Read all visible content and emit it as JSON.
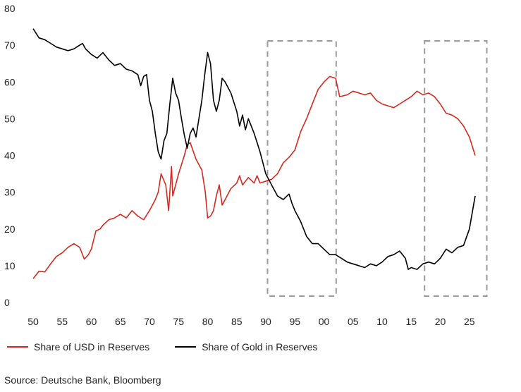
{
  "chart_data": {
    "type": "line",
    "title": "",
    "xlabel": "",
    "ylabel": "",
    "xlim": [
      1950,
      2030
    ],
    "ylim": [
      0,
      80
    ],
    "y_ticks": [
      0,
      10,
      20,
      30,
      40,
      50,
      60,
      70,
      80
    ],
    "x_ticks": [
      1950,
      1955,
      1960,
      1965,
      1970,
      1975,
      1980,
      1985,
      1990,
      1995,
      2000,
      2005,
      2010,
      2015,
      2020,
      2025
    ],
    "x_tick_labels": [
      "50",
      "55",
      "60",
      "65",
      "70",
      "75",
      "80",
      "85",
      "90",
      "95",
      "00",
      "05",
      "10",
      "15",
      "20",
      "25"
    ],
    "grid": false,
    "legend_position": "bottom-left",
    "highlight_periods": [
      [
        1990.3,
        2002.1
      ],
      [
        2017.3,
        2028.0
      ]
    ],
    "series": [
      {
        "name": "Share of USD in Reserves",
        "color": "#d42a20",
        "points": [
          [
            1950,
            6.5
          ],
          [
            1951,
            8.5
          ],
          [
            1952,
            8.3
          ],
          [
            1953,
            10.5
          ],
          [
            1954,
            12.5
          ],
          [
            1955,
            13.5
          ],
          [
            1956,
            15
          ],
          [
            1957,
            16
          ],
          [
            1958,
            15
          ],
          [
            1958.8,
            11.8
          ],
          [
            1959.5,
            13
          ],
          [
            1960,
            14.5
          ],
          [
            1960.8,
            19.5
          ],
          [
            1961.5,
            20
          ],
          [
            1962,
            21
          ],
          [
            1963,
            22.5
          ],
          [
            1964,
            23
          ],
          [
            1965,
            24
          ],
          [
            1966,
            23
          ],
          [
            1967,
            25
          ],
          [
            1968,
            23.5
          ],
          [
            1969,
            22.5
          ],
          [
            1970,
            25
          ],
          [
            1971,
            28
          ],
          [
            1971.5,
            30
          ],
          [
            1972,
            35
          ],
          [
            1972.8,
            32
          ],
          [
            1973.3,
            25
          ],
          [
            1973.8,
            37
          ],
          [
            1974,
            29
          ],
          [
            1975,
            35
          ],
          [
            1976,
            40
          ],
          [
            1976.5,
            43
          ],
          [
            1977,
            43.5
          ],
          [
            1978,
            39
          ],
          [
            1979,
            36
          ],
          [
            1979.6,
            30
          ],
          [
            1980,
            23
          ],
          [
            1980.5,
            23.5
          ],
          [
            1981,
            25
          ],
          [
            1981.5,
            29
          ],
          [
            1982,
            32
          ],
          [
            1982.5,
            26.5
          ],
          [
            1983,
            28
          ],
          [
            1984,
            31
          ],
          [
            1985,
            32.5
          ],
          [
            1985.5,
            34.5
          ],
          [
            1986,
            32
          ],
          [
            1987,
            34
          ],
          [
            1988,
            32.5
          ],
          [
            1988.5,
            34.5
          ],
          [
            1989,
            32.5
          ],
          [
            1990,
            33
          ],
          [
            1991,
            33.5
          ],
          [
            1992,
            35
          ],
          [
            1993,
            38
          ],
          [
            1994,
            39.5
          ],
          [
            1995,
            41.5
          ],
          [
            1996,
            46.5
          ],
          [
            1997,
            50
          ],
          [
            1998,
            54
          ],
          [
            1999,
            58
          ],
          [
            2000,
            60
          ],
          [
            2001,
            61.5
          ],
          [
            2002,
            61
          ],
          [
            2002.7,
            56
          ],
          [
            2004,
            56.5
          ],
          [
            2005,
            57.5
          ],
          [
            2006,
            57
          ],
          [
            2007,
            56.5
          ],
          [
            2008,
            57
          ],
          [
            2009,
            55
          ],
          [
            2010,
            54
          ],
          [
            2011,
            53.5
          ],
          [
            2012,
            53
          ],
          [
            2013,
            54
          ],
          [
            2014,
            55
          ],
          [
            2015,
            56
          ],
          [
            2016,
            57.5
          ],
          [
            2017,
            56.5
          ],
          [
            2018,
            57
          ],
          [
            2019,
            56
          ],
          [
            2020,
            54
          ],
          [
            2021,
            51.5
          ],
          [
            2022,
            51
          ],
          [
            2023,
            50
          ],
          [
            2024,
            48
          ],
          [
            2025,
            45
          ],
          [
            2026,
            40
          ]
        ]
      },
      {
        "name": "Share of Gold in Reserves",
        "color": "#000000",
        "points": [
          [
            1950,
            74.5
          ],
          [
            1951,
            72
          ],
          [
            1952,
            71.5
          ],
          [
            1953,
            70.5
          ],
          [
            1954,
            69.5
          ],
          [
            1955,
            69
          ],
          [
            1956,
            68.5
          ],
          [
            1957,
            69
          ],
          [
            1958,
            70
          ],
          [
            1958.5,
            70.5
          ],
          [
            1959,
            69
          ],
          [
            1960,
            67.5
          ],
          [
            1961,
            66.5
          ],
          [
            1962,
            68
          ],
          [
            1963,
            66
          ],
          [
            1964,
            64.5
          ],
          [
            1965,
            65
          ],
          [
            1966,
            63.5
          ],
          [
            1967,
            63
          ],
          [
            1968,
            62
          ],
          [
            1968.5,
            59
          ],
          [
            1969,
            61.5
          ],
          [
            1969.5,
            62
          ],
          [
            1970,
            55
          ],
          [
            1970.5,
            52
          ],
          [
            1971,
            46
          ],
          [
            1971.5,
            41
          ],
          [
            1972,
            39
          ],
          [
            1972.5,
            44
          ],
          [
            1973,
            46
          ],
          [
            1973.5,
            54
          ],
          [
            1974,
            61
          ],
          [
            1974.5,
            57
          ],
          [
            1975,
            55
          ],
          [
            1975.5,
            50
          ],
          [
            1976,
            45.5
          ],
          [
            1976.5,
            42
          ],
          [
            1977,
            46
          ],
          [
            1977.5,
            47.5
          ],
          [
            1978,
            45
          ],
          [
            1979,
            55
          ],
          [
            1979.5,
            62
          ],
          [
            1980,
            68
          ],
          [
            1980.5,
            65
          ],
          [
            1981,
            55
          ],
          [
            1981.5,
            52
          ],
          [
            1982,
            55
          ],
          [
            1982.5,
            61
          ],
          [
            1983,
            60
          ],
          [
            1984,
            57
          ],
          [
            1985,
            52
          ],
          [
            1985.5,
            48
          ],
          [
            1986,
            51
          ],
          [
            1986.5,
            47
          ],
          [
            1987,
            50
          ],
          [
            1988,
            46
          ],
          [
            1989,
            41
          ],
          [
            1990,
            35
          ],
          [
            1990.5,
            33.5
          ],
          [
            1991,
            32
          ],
          [
            1992,
            29
          ],
          [
            1993,
            28
          ],
          [
            1994,
            29.5
          ],
          [
            1994.5,
            27
          ],
          [
            1995,
            25
          ],
          [
            1996,
            22
          ],
          [
            1997,
            18
          ],
          [
            1998,
            16
          ],
          [
            1999,
            16
          ],
          [
            2000,
            14.5
          ],
          [
            2001,
            13
          ],
          [
            2002,
            13
          ],
          [
            2003,
            12
          ],
          [
            2004,
            11
          ],
          [
            2005,
            10.5
          ],
          [
            2006,
            10
          ],
          [
            2007,
            9.5
          ],
          [
            2008,
            10.5
          ],
          [
            2009,
            10
          ],
          [
            2010,
            11
          ],
          [
            2011,
            12.5
          ],
          [
            2012,
            13
          ],
          [
            2013,
            14
          ],
          [
            2014,
            12
          ],
          [
            2014.5,
            9
          ],
          [
            2015,
            9.5
          ],
          [
            2016,
            9
          ],
          [
            2017,
            10.5
          ],
          [
            2018,
            11
          ],
          [
            2019,
            10.5
          ],
          [
            2020,
            12
          ],
          [
            2021,
            14.5
          ],
          [
            2022,
            13.5
          ],
          [
            2023,
            15
          ],
          [
            2024,
            15.5
          ],
          [
            2025,
            20
          ],
          [
            2026,
            29
          ]
        ]
      }
    ],
    "source": "Source: Deutsche Bank, Bloomberg"
  }
}
